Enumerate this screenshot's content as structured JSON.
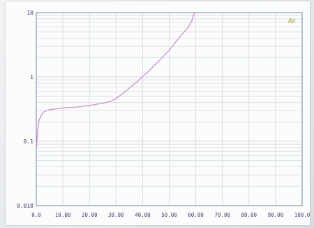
{
  "chart_data": {
    "type": "line",
    "title": "",
    "xlabel": "",
    "ylabel": "",
    "x_scale": "linear",
    "y_scale": "log",
    "xlim": [
      0,
      100
    ],
    "ylim": [
      0.01,
      10
    ],
    "x_ticks": [
      "0.0",
      "10.00",
      "20.00",
      "30.00",
      "40.00",
      "50.00",
      "60.00",
      "70.00",
      "80.00",
      "90.00",
      "100.0"
    ],
    "y_ticks": [
      "10",
      "1",
      "0.1",
      "0.010"
    ],
    "grid": true,
    "legend": "none",
    "series": [
      {
        "x": [
          0.1,
          0.5,
          1,
          2,
          3,
          5,
          8,
          10,
          15,
          20,
          25,
          28,
          30,
          34,
          38,
          42,
          46,
          50,
          54,
          57,
          58.5,
          59.5
        ],
        "y": [
          0.08,
          0.15,
          0.21,
          0.26,
          0.29,
          0.31,
          0.32,
          0.33,
          0.34,
          0.36,
          0.39,
          0.42,
          0.46,
          0.62,
          0.85,
          1.2,
          1.75,
          2.6,
          4.2,
          5.8,
          7.4,
          10.0
        ],
        "color": "#c993cf"
      }
    ],
    "colors": {
      "grid": "#d7dcd9",
      "axis": "#7f85a2",
      "tick_text": "#4a3f78",
      "line": "#c993cf",
      "logo": "#b59a2a"
    }
  },
  "logo_text": "Ap"
}
